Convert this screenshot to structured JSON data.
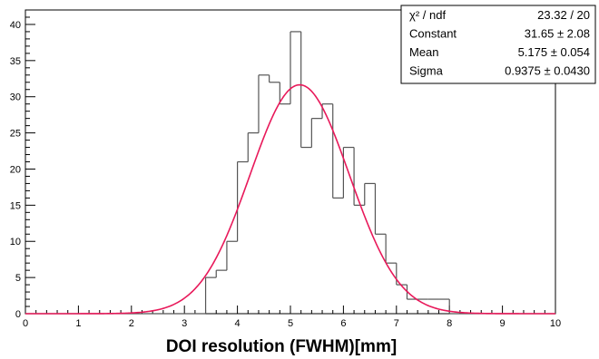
{
  "chart_data": {
    "type": "histogram",
    "xlabel": "DOI resolution (FWHM)[mm]",
    "ylabel": "",
    "xlim": [
      0,
      10
    ],
    "ylim": [
      0,
      42
    ],
    "x_ticks": [
      0,
      1,
      2,
      3,
      4,
      5,
      6,
      7,
      8,
      9,
      10
    ],
    "y_ticks": [
      0,
      5,
      10,
      15,
      20,
      25,
      30,
      35,
      40
    ],
    "grid": false,
    "bin_width": 0.2,
    "bins": [
      {
        "x": 3.4,
        "y": 5
      },
      {
        "x": 3.6,
        "y": 6
      },
      {
        "x": 3.8,
        "y": 10
      },
      {
        "x": 4.0,
        "y": 21
      },
      {
        "x": 4.2,
        "y": 25
      },
      {
        "x": 4.4,
        "y": 33
      },
      {
        "x": 4.6,
        "y": 32
      },
      {
        "x": 4.8,
        "y": 29
      },
      {
        "x": 5.0,
        "y": 39
      },
      {
        "x": 5.2,
        "y": 23
      },
      {
        "x": 5.4,
        "y": 27
      },
      {
        "x": 5.6,
        "y": 29
      },
      {
        "x": 5.8,
        "y": 16
      },
      {
        "x": 6.0,
        "y": 23
      },
      {
        "x": 6.2,
        "y": 15
      },
      {
        "x": 6.4,
        "y": 18
      },
      {
        "x": 6.6,
        "y": 11
      },
      {
        "x": 6.8,
        "y": 7
      },
      {
        "x": 7.0,
        "y": 4
      },
      {
        "x": 7.2,
        "y": 2
      },
      {
        "x": 7.4,
        "y": 2
      },
      {
        "x": 7.6,
        "y": 2
      },
      {
        "x": 7.8,
        "y": 2
      }
    ],
    "fit": {
      "function": "gaus",
      "constant": 31.65,
      "mean": 5.175,
      "sigma": 0.9375,
      "color": "#e8195a"
    },
    "hist_color": "#555555",
    "stats_box": {
      "location": "top-right",
      "rows": [
        {
          "label": "χ² / ndf",
          "value": "23.32 / 20"
        },
        {
          "label": "Constant",
          "value": "31.65 ± 2.08"
        },
        {
          "label": "Mean",
          "value": "5.175 ± 0.054"
        },
        {
          "label": "Sigma",
          "value": "0.9375 ± 0.0430"
        }
      ]
    }
  }
}
